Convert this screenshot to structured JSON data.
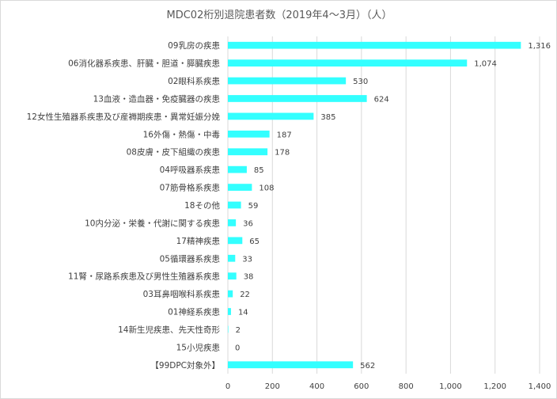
{
  "chart_data": {
    "type": "bar",
    "orientation": "horizontal",
    "title": "MDC02桁別退院患者数（2019年4～3月）（人）",
    "categories": [
      "09乳房の疾患",
      "06消化器系疾患、肝臓・胆道・膵臓疾患",
      "02眼科系疾患",
      "13血液・造血器・免疫臓器の疾患",
      "12女性生殖器系疾患及び産褥期疾患・異常妊娠分娩",
      "16外傷・熱傷・中毒",
      "08皮膚・皮下組織の疾患",
      "04呼吸器系疾患",
      "07筋骨格系疾患",
      "18その他",
      "10内分泌・栄養・代謝に関する疾患",
      "17精神疾患",
      "05循環器系疾患",
      "11腎・尿路系疾患及び男性生殖器系疾患",
      "03耳鼻咽喉科系疾患",
      "01神経系疾患",
      "14新生児疾患、先天性奇形",
      "15小児疾患",
      "【99DPC対象外】"
    ],
    "values": [
      1316,
      1074,
      530,
      624,
      385,
      187,
      178,
      85,
      108,
      59,
      36,
      65,
      33,
      38,
      22,
      14,
      2,
      0,
      562
    ],
    "value_labels": [
      "1,316",
      "1,074",
      "530",
      "624",
      "385",
      "187",
      "178",
      "85",
      "108",
      "59",
      "36",
      "65",
      "33",
      "38",
      "22",
      "14",
      "2",
      "0",
      "562"
    ],
    "xlim": [
      0,
      1400
    ],
    "xticks": [
      0,
      200,
      400,
      600,
      800,
      1000,
      1200,
      1400
    ],
    "xtick_labels": [
      "0",
      "200",
      "400",
      "600",
      "800",
      "1,000",
      "1,200",
      "1,400"
    ],
    "grid": true,
    "bar_color": "#33ffff",
    "grid_color": "#d9d9d9",
    "xlabel": "",
    "ylabel": ""
  }
}
